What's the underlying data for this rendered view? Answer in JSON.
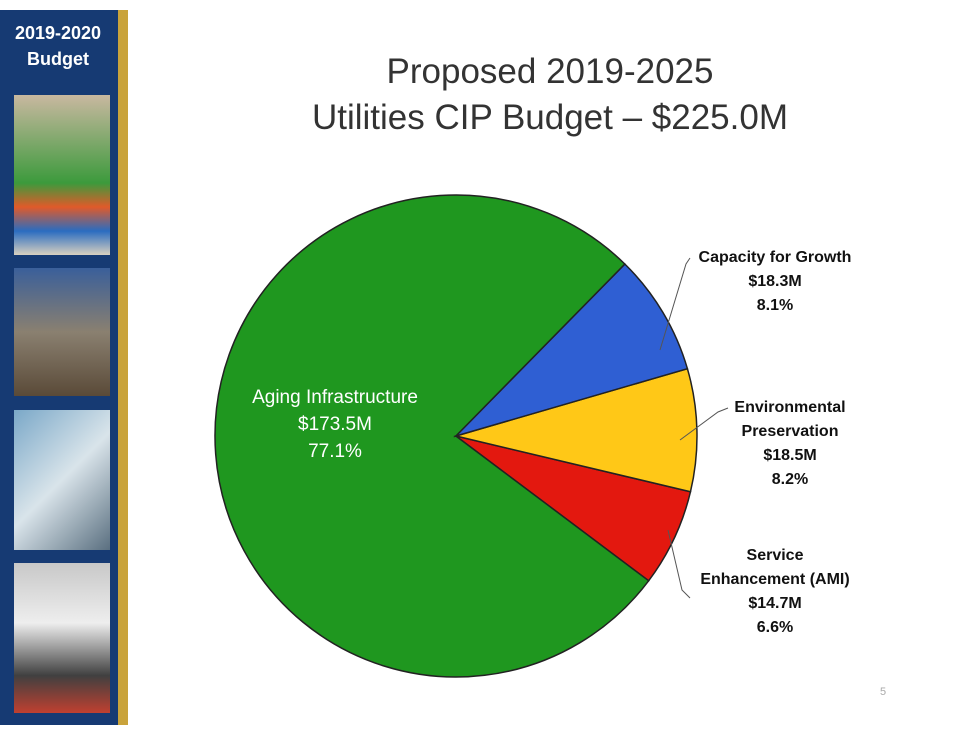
{
  "sidebar_title": "2019-2020 Budget",
  "page_number": "5",
  "chart_data": {
    "type": "pie",
    "title": "Proposed 2019-2025",
    "subtitle": "Utilities CIP Budget – $225.0M",
    "categories": [
      "Capacity for Growth",
      "Environmental Preservation",
      "Service Enhancement (AMI)",
      "Aging Infrastructure"
    ],
    "values": [
      18.3,
      18.5,
      14.7,
      173.5
    ],
    "value_labels": [
      "$18.3M",
      "$18.5M",
      "$14.7M",
      "$173.5M"
    ],
    "percents": [
      8.1,
      8.2,
      6.6,
      77.1
    ],
    "percent_labels": [
      "8.1%",
      "8.2%",
      "6.6%",
      "77.1%"
    ],
    "colors": [
      "#2f5fd3",
      "#ffc817",
      "#e3180f",
      "#1f971f"
    ]
  }
}
